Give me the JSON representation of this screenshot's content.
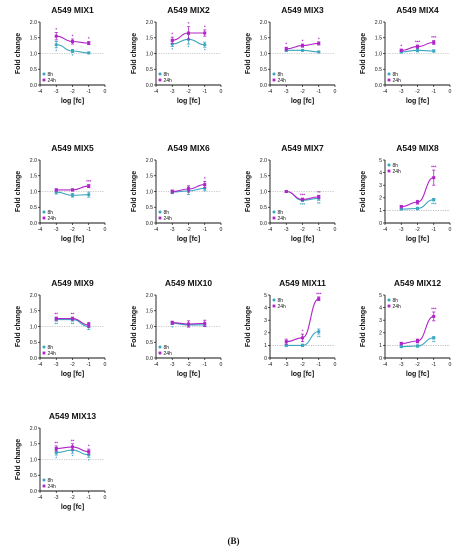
{
  "caption": "(B)",
  "colors": {
    "h8": "#3ba6bf",
    "h24": "#b024c8",
    "axis": "#111111",
    "reference": "#9a9a9a"
  },
  "chart_data": [
    {
      "type": "line",
      "title": "A549 MIX1",
      "xlabel": "log [fc]",
      "ylabel": "Fold change",
      "xlim": [
        -4,
        0
      ],
      "ylim": [
        0,
        2
      ],
      "xticks": [
        "-4",
        "-3",
        "-2",
        "-1",
        "0"
      ],
      "yticks": [
        "0.0",
        "0.5",
        "1.0",
        "1.5",
        "2.0"
      ],
      "legend": "bottom-left",
      "x": [
        -3,
        -2,
        -1
      ],
      "series": [
        {
          "name": "8h",
          "values": [
            1.28,
            1.08,
            1.02
          ],
          "errors": [
            0.1,
            0.05,
            0.03
          ],
          "marks": [
            "*",
            "*",
            ""
          ]
        },
        {
          "name": "24h",
          "values": [
            1.55,
            1.38,
            1.33
          ],
          "errors": [
            0.12,
            0.08,
            0.05
          ],
          "marks": [
            "*",
            "*",
            "*"
          ]
        }
      ]
    },
    {
      "type": "line",
      "title": "A549 MIX2",
      "xlabel": "log [fc]",
      "ylabel": "Fold change",
      "xlim": [
        -4,
        0
      ],
      "ylim": [
        0,
        2
      ],
      "xticks": [
        "-4",
        "-3",
        "-2",
        "-1",
        "0"
      ],
      "yticks": [
        "0.0",
        "0.5",
        "1.0",
        "1.5",
        "2.0"
      ],
      "legend": "bottom-left",
      "x": [
        -3,
        -2,
        -1
      ],
      "series": [
        {
          "name": "8h",
          "values": [
            1.3,
            1.45,
            1.28
          ],
          "errors": [
            0.08,
            0.15,
            0.08
          ],
          "marks": [
            "*",
            "*",
            "*"
          ]
        },
        {
          "name": "24h",
          "values": [
            1.42,
            1.65,
            1.65
          ],
          "errors": [
            0.1,
            0.2,
            0.1
          ],
          "marks": [
            "*",
            "*",
            "*"
          ]
        }
      ]
    },
    {
      "type": "line",
      "title": "A549 MIX3",
      "xlabel": "log [fc]",
      "ylabel": "Fold change",
      "xlim": [
        -4,
        0
      ],
      "ylim": [
        0,
        2
      ],
      "xticks": [
        "-4",
        "-3",
        "-2",
        "-1",
        "0"
      ],
      "yticks": [
        "0.0",
        "0.5",
        "1.0",
        "1.5",
        "2.0"
      ],
      "legend": "bottom-left",
      "x": [
        -3,
        -2,
        -1
      ],
      "series": [
        {
          "name": "8h",
          "values": [
            1.1,
            1.1,
            1.05
          ],
          "errors": [
            0.04,
            0.03,
            0.03
          ],
          "marks": [
            "",
            "",
            ""
          ]
        },
        {
          "name": "24h",
          "values": [
            1.15,
            1.25,
            1.32
          ],
          "errors": [
            0.05,
            0.05,
            0.05
          ],
          "marks": [
            "*",
            "*",
            "*"
          ]
        }
      ]
    },
    {
      "type": "line",
      "title": "A549 MIX4",
      "xlabel": "log [fc]",
      "ylabel": "Fold change",
      "xlim": [
        -4,
        0
      ],
      "ylim": [
        0,
        2
      ],
      "xticks": [
        "-4",
        "-3",
        "-2",
        "-1",
        "0"
      ],
      "yticks": [
        "0.0",
        "0.5",
        "1.0",
        "1.5",
        "2.0"
      ],
      "legend": "bottom-left",
      "x": [
        -3,
        -2,
        -1
      ],
      "series": [
        {
          "name": "8h",
          "values": [
            1.05,
            1.1,
            1.08
          ],
          "errors": [
            0.04,
            0.05,
            0.04
          ],
          "marks": [
            "",
            "",
            ""
          ]
        },
        {
          "name": "24h",
          "values": [
            1.1,
            1.22,
            1.35
          ],
          "errors": [
            0.04,
            0.05,
            0.06
          ],
          "marks": [
            "*",
            "***",
            "***"
          ]
        }
      ]
    },
    {
      "type": "line",
      "title": "A549 MIX5",
      "xlabel": "log [fc]",
      "ylabel": "Fold change",
      "xlim": [
        -4,
        0
      ],
      "ylim": [
        0,
        2
      ],
      "xticks": [
        "-4",
        "-3",
        "-2",
        "-1",
        "0"
      ],
      "yticks": [
        "0.0",
        "0.5",
        "1.0",
        "1.5",
        "2.0"
      ],
      "legend": "bottom-left",
      "x": [
        -3,
        -2,
        -1
      ],
      "series": [
        {
          "name": "8h",
          "values": [
            0.98,
            0.88,
            0.9
          ],
          "errors": [
            0.06,
            0.06,
            0.08
          ],
          "marks": [
            "",
            "",
            ""
          ]
        },
        {
          "name": "24h",
          "values": [
            1.05,
            1.05,
            1.17
          ],
          "errors": [
            0.04,
            0.04,
            0.05
          ],
          "marks": [
            "",
            "",
            "***"
          ]
        }
      ]
    },
    {
      "type": "line",
      "title": "A549 MIX6",
      "xlabel": "log [fc]",
      "ylabel": "Fold change",
      "xlim": [
        -4,
        0
      ],
      "ylim": [
        0,
        2
      ],
      "xticks": [
        "-4",
        "-3",
        "-2",
        "-1",
        "0"
      ],
      "yticks": [
        "0.0",
        "0.5",
        "1.0",
        "1.5",
        "2.0"
      ],
      "legend": "bottom-left",
      "x": [
        -3,
        -2,
        -1
      ],
      "series": [
        {
          "name": "8h",
          "values": [
            0.98,
            1.02,
            1.1
          ],
          "errors": [
            0.05,
            0.12,
            0.08
          ],
          "marks": [
            "",
            "",
            ""
          ]
        },
        {
          "name": "24h",
          "values": [
            1.0,
            1.08,
            1.22
          ],
          "errors": [
            0.05,
            0.1,
            0.1
          ],
          "marks": [
            "",
            "",
            "*"
          ]
        }
      ]
    },
    {
      "type": "line",
      "title": "A549 MIX7",
      "xlabel": "log [fc]",
      "ylabel": "Fold change",
      "xlim": [
        -4,
        0
      ],
      "ylim": [
        0,
        2
      ],
      "xticks": [
        "-4",
        "-3",
        "-2",
        "-1",
        "0"
      ],
      "yticks": [
        "0.0",
        "0.5",
        "1.0",
        "1.5",
        "2.0"
      ],
      "legend": "bottom-left",
      "x": [
        -3,
        -2,
        -1
      ],
      "series": [
        {
          "name": "8h",
          "values": [
            1.0,
            0.72,
            0.78
          ],
          "errors": [
            0.03,
            0.04,
            0.06
          ],
          "marks": [
            "",
            "***",
            "**"
          ]
        },
        {
          "name": "24h",
          "values": [
            1.0,
            0.75,
            0.83
          ],
          "errors": [
            0.03,
            0.04,
            0.05
          ],
          "marks": [
            "",
            "***",
            "**"
          ]
        }
      ]
    },
    {
      "type": "line",
      "title": "A549 MIX8",
      "xlabel": "log [fc]",
      "ylabel": "Fold change",
      "xlim": [
        -4,
        0
      ],
      "ylim": [
        0,
        5
      ],
      "xticks": [
        "-4",
        "-3",
        "-2",
        "-1",
        "0"
      ],
      "yticks": [
        "0",
        "1",
        "2",
        "3",
        "4",
        "5"
      ],
      "legend": "top-left",
      "x": [
        -3,
        -2,
        -1
      ],
      "series": [
        {
          "name": "8h",
          "values": [
            1.1,
            1.15,
            1.85
          ],
          "errors": [
            0.08,
            0.1,
            0.1
          ],
          "marks": [
            "",
            "",
            "***"
          ]
        },
        {
          "name": "24h",
          "values": [
            1.3,
            1.65,
            3.6
          ],
          "errors": [
            0.1,
            0.15,
            0.6
          ],
          "marks": [
            "",
            "",
            "***"
          ]
        }
      ]
    },
    {
      "type": "line",
      "title": "A549 MIX9",
      "xlabel": "log [fc]",
      "ylabel": "Fold change",
      "xlim": [
        -4,
        0
      ],
      "ylim": [
        0,
        2
      ],
      "xticks": [
        "-4",
        "-3",
        "-2",
        "-1",
        "0"
      ],
      "yticks": [
        "0.0",
        "0.5",
        "1.0",
        "1.5",
        "2.0"
      ],
      "legend": "bottom-left",
      "x": [
        -3,
        -2,
        -1
      ],
      "series": [
        {
          "name": "8h",
          "values": [
            1.22,
            1.22,
            1.0
          ],
          "errors": [
            0.05,
            0.05,
            0.1
          ],
          "marks": [
            "**",
            "**",
            ""
          ]
        },
        {
          "name": "24h",
          "values": [
            1.25,
            1.25,
            1.05
          ],
          "errors": [
            0.05,
            0.05,
            0.08
          ],
          "marks": [
            "**",
            "**",
            ""
          ]
        }
      ]
    },
    {
      "type": "line",
      "title": "A549 MIX10",
      "xlabel": "log [fc]",
      "ylabel": "Fold change",
      "xlim": [
        -4,
        0
      ],
      "ylim": [
        0,
        2
      ],
      "xticks": [
        "-4",
        "-3",
        "-2",
        "-1",
        "0"
      ],
      "yticks": [
        "0.0",
        "0.5",
        "1.0",
        "1.5",
        "2.0"
      ],
      "legend": "bottom-left",
      "x": [
        -3,
        -2,
        -1
      ],
      "series": [
        {
          "name": "8h",
          "values": [
            1.1,
            1.05,
            1.05
          ],
          "errors": [
            0.04,
            0.04,
            0.05
          ],
          "marks": [
            "*",
            "",
            ""
          ]
        },
        {
          "name": "24h",
          "values": [
            1.12,
            1.08,
            1.1
          ],
          "errors": [
            0.05,
            0.1,
            0.1
          ],
          "marks": [
            "",
            "",
            ""
          ]
        }
      ]
    },
    {
      "type": "line",
      "title": "A549 MIX11",
      "xlabel": "log [fc]",
      "ylabel": "Fold change",
      "xlim": [
        -4,
        0
      ],
      "ylim": [
        0,
        5
      ],
      "xticks": [
        "-4",
        "-3",
        "-2",
        "-1",
        "0"
      ],
      "yticks": [
        "0",
        "1",
        "2",
        "3",
        "4",
        "5"
      ],
      "legend": "top-left",
      "x": [
        -3,
        -2,
        -1
      ],
      "series": [
        {
          "name": "8h",
          "values": [
            1.0,
            1.0,
            2.1
          ],
          "errors": [
            0.1,
            0.1,
            0.2
          ],
          "marks": [
            "",
            "",
            "**"
          ]
        },
        {
          "name": "24h",
          "values": [
            1.3,
            1.6,
            4.7
          ],
          "errors": [
            0.2,
            0.3,
            0.15
          ],
          "marks": [
            "",
            "*",
            "***"
          ]
        }
      ]
    },
    {
      "type": "line",
      "title": "A549 MIX12",
      "xlabel": "log [fc]",
      "ylabel": "Fold change",
      "xlim": [
        -4,
        0
      ],
      "ylim": [
        0,
        5
      ],
      "xticks": [
        "-4",
        "-3",
        "-2",
        "-1",
        "0"
      ],
      "yticks": [
        "0",
        "1",
        "2",
        "3",
        "4",
        "5"
      ],
      "legend": "top-left",
      "x": [
        -3,
        -2,
        -1
      ],
      "series": [
        {
          "name": "8h",
          "values": [
            0.9,
            0.95,
            1.6
          ],
          "errors": [
            0.08,
            0.1,
            0.1
          ],
          "marks": [
            "",
            "",
            "**"
          ]
        },
        {
          "name": "24h",
          "values": [
            1.15,
            1.35,
            3.3
          ],
          "errors": [
            0.1,
            0.15,
            0.35
          ],
          "marks": [
            "",
            "",
            "***"
          ]
        }
      ]
    },
    {
      "type": "line",
      "title": "A549 MIX13",
      "xlabel": "log [fc]",
      "ylabel": "Fold change",
      "xlim": [
        -4,
        0
      ],
      "ylim": [
        0,
        2
      ],
      "xticks": [
        "-4",
        "-3",
        "-2",
        "-1",
        "0"
      ],
      "yticks": [
        "0.0",
        "0.5",
        "1.0",
        "1.5",
        "2.0"
      ],
      "legend": "bottom-left",
      "x": [
        -3,
        -2,
        -1
      ],
      "series": [
        {
          "name": "8h",
          "values": [
            1.22,
            1.3,
            1.15
          ],
          "errors": [
            0.08,
            0.1,
            0.08
          ],
          "marks": [
            "*",
            "*",
            "*"
          ]
        },
        {
          "name": "24h",
          "values": [
            1.35,
            1.4,
            1.25
          ],
          "errors": [
            0.08,
            0.1,
            0.08
          ],
          "marks": [
            "**",
            "**",
            "*"
          ]
        }
      ]
    }
  ]
}
